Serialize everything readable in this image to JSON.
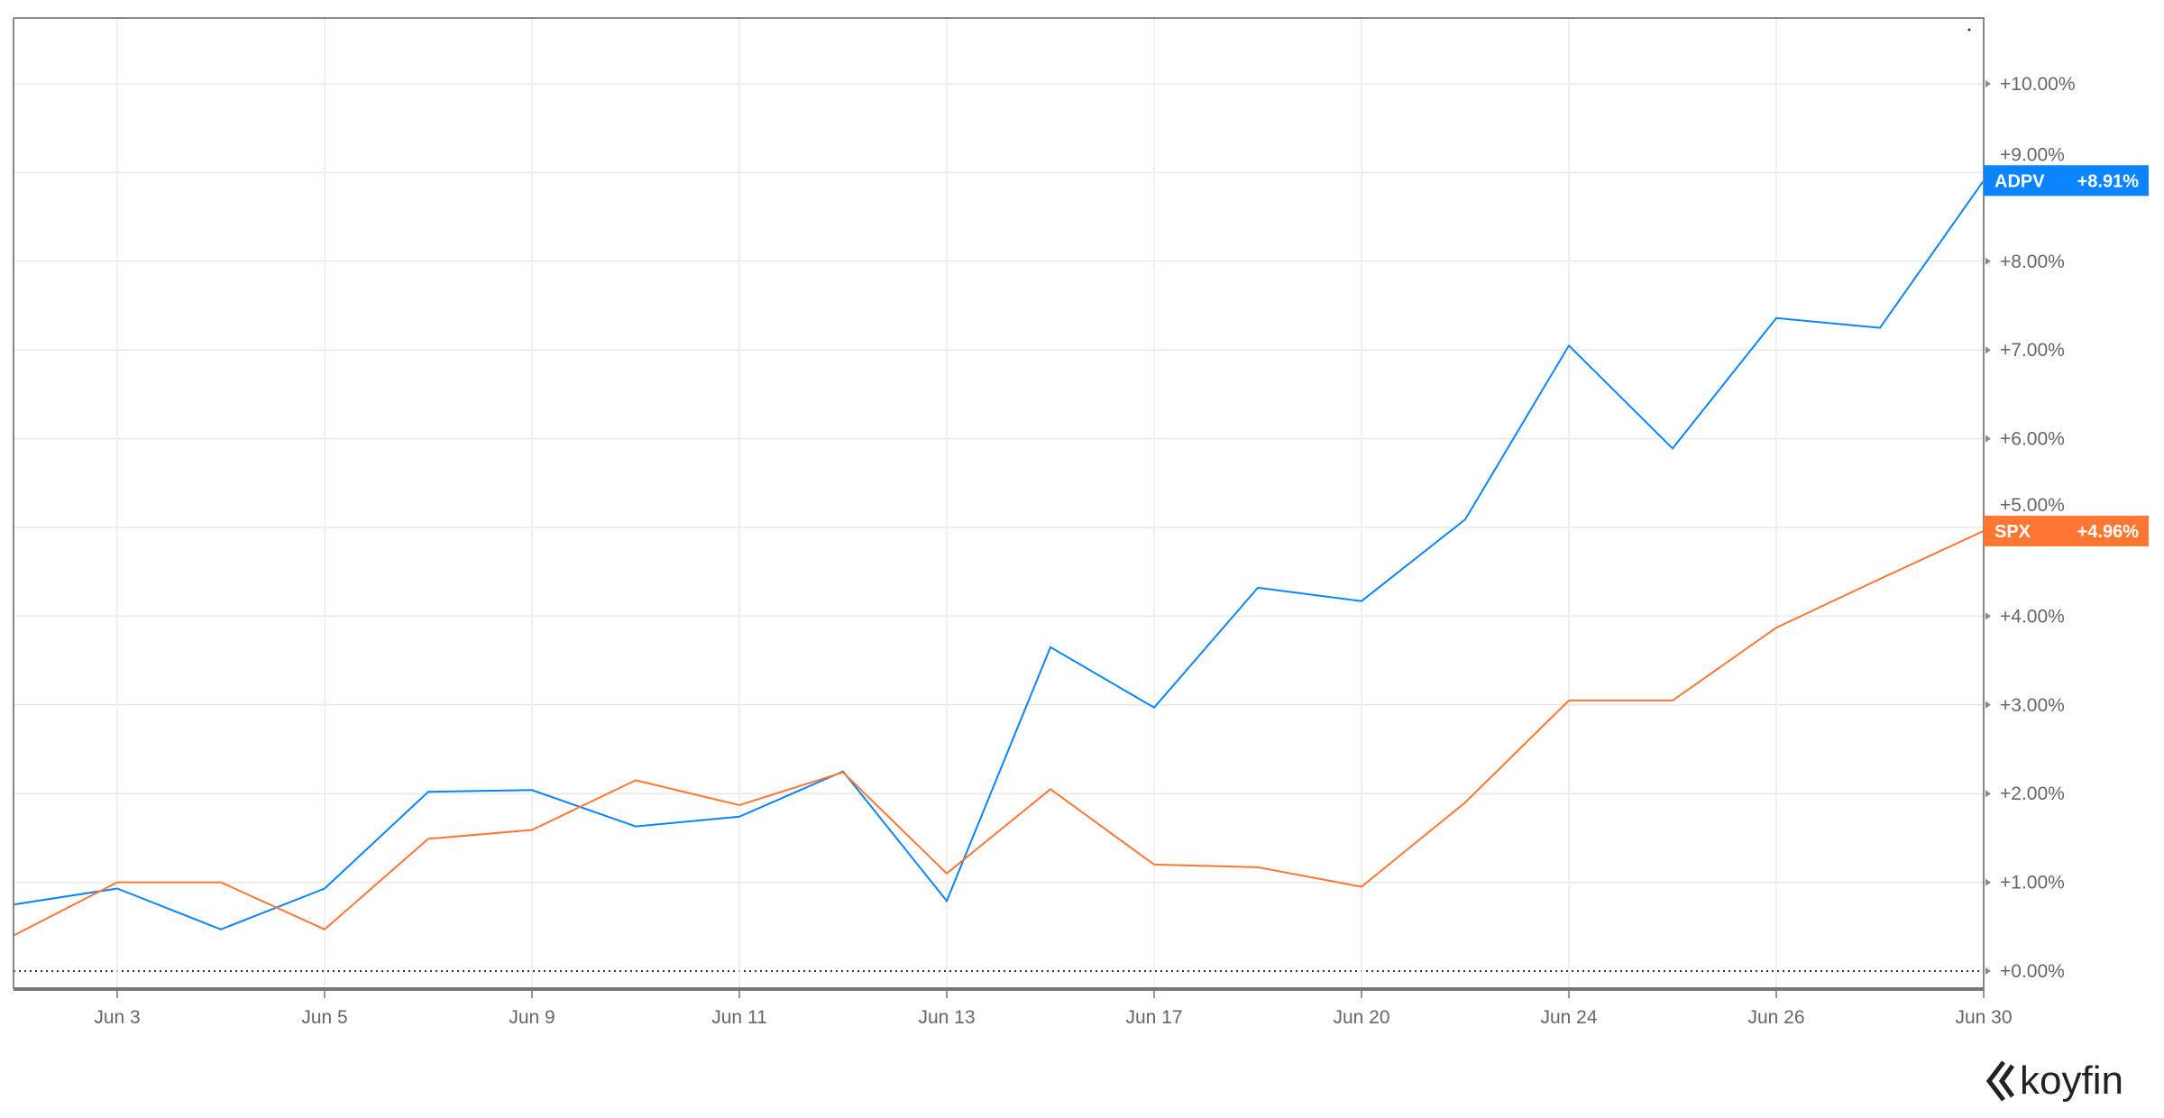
{
  "chart_data": {
    "type": "line",
    "title": "",
    "xlabel": "",
    "ylabel": "",
    "x": [
      "Jun 2",
      "Jun 3",
      "Jun 4",
      "Jun 5",
      "Jun 6",
      "Jun 9",
      "Jun 10",
      "Jun 11",
      "Jun 12",
      "Jun 13",
      "Jun 16",
      "Jun 17",
      "Jun 18",
      "Jun 20",
      "Jun 23",
      "Jun 24",
      "Jun 25",
      "Jun 26",
      "Jun 27",
      "Jun 30"
    ],
    "x_tick_labels": [
      "Jun 3",
      "Jun 5",
      "Jun 9",
      "Jun 11",
      "Jun 13",
      "Jun 17",
      "Jun 20",
      "Jun 24",
      "Jun 26",
      "Jun 30"
    ],
    "y_tick_labels": [
      "+0.00%",
      "+1.00%",
      "+2.00%",
      "+3.00%",
      "+4.00%",
      "+5.00%",
      "+6.00%",
      "+7.00%",
      "+8.00%",
      "+9.00%",
      "+10.00%"
    ],
    "ylim": [
      -0.2,
      10.9
    ],
    "y_unit": "%",
    "grid": true,
    "series": [
      {
        "name": "ADPV",
        "color": "#0a84ff",
        "last_label": "+8.91%",
        "values": [
          0.75,
          0.93,
          0.47,
          0.93,
          2.02,
          2.04,
          1.63,
          1.74,
          2.25,
          0.79,
          3.65,
          2.97,
          4.32,
          4.17,
          5.09,
          7.05,
          5.89,
          7.36,
          7.25,
          8.91
        ]
      },
      {
        "name": "SPX",
        "color": "#ff7733",
        "last_label": "+4.96%",
        "values": [
          0.4,
          1.0,
          1.0,
          0.47,
          1.49,
          1.59,
          2.15,
          1.87,
          2.24,
          1.1,
          2.05,
          1.2,
          1.17,
          0.95,
          1.9,
          3.05,
          3.05,
          3.87,
          4.42,
          4.96
        ]
      }
    ]
  },
  "branding": {
    "logo_text": "koyfin"
  }
}
